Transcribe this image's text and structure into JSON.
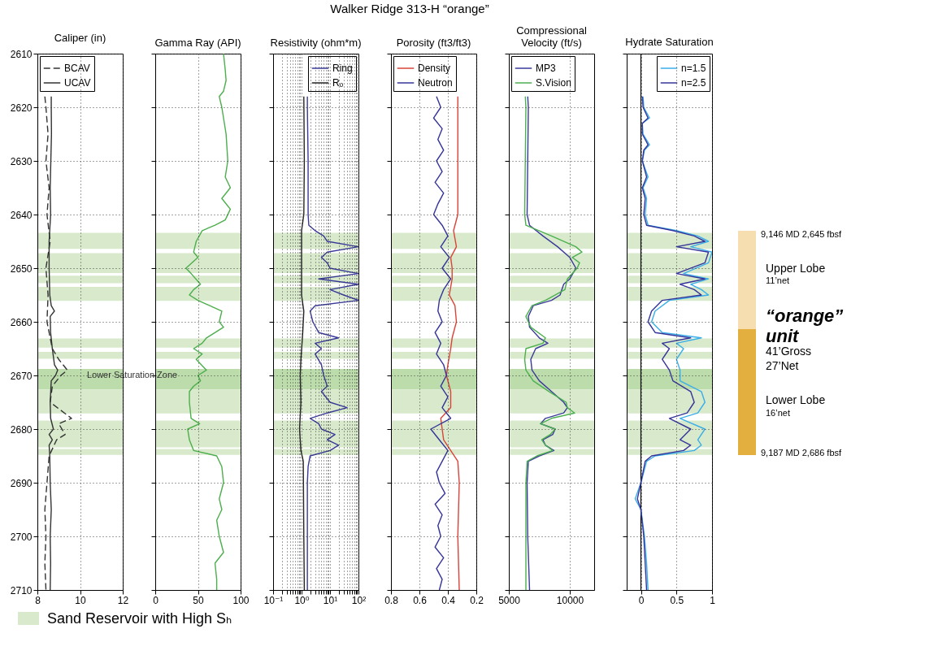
{
  "chart_data": [
    {
      "type": "line",
      "title": "Caliper (in)",
      "xlim": [
        8,
        12
      ],
      "xticks": [
        8,
        10,
        12
      ],
      "ylim": [
        2710,
        2610
      ],
      "yticks": [
        2610,
        2620,
        2630,
        2640,
        2650,
        2660,
        2670,
        2680,
        2690,
        2700,
        2710
      ],
      "grid": true,
      "legend": "top left",
      "series": [
        {
          "name": "BCAV",
          "color": "#333333",
          "line_style": "dashed",
          "x": [
            8.35,
            8.4,
            8.5,
            8.4,
            8.55,
            8.45,
            8.6,
            8.4,
            8.5,
            8.45,
            8.7,
            9.0,
            9.2,
            9.4,
            9.1,
            8.7,
            8.6,
            9.6,
            9.0,
            9.3,
            8.9,
            8.55,
            8.45,
            8.35,
            8.4,
            8.35,
            8.4
          ],
          "values": [
            2618,
            2620,
            2625,
            2630,
            2635,
            2640,
            2645,
            2650,
            2655,
            2660,
            2665,
            2667,
            2668,
            2669,
            2670,
            2672,
            2675,
            2678,
            2679,
            2681,
            2682,
            2685,
            2690,
            2695,
            2700,
            2705,
            2710
          ]
        },
        {
          "name": "UCAV",
          "color": "#333333",
          "line_style": "solid",
          "x": [
            8.65,
            8.65,
            8.66,
            8.63,
            8.6,
            8.62,
            8.55,
            8.55,
            8.58,
            8.65,
            8.8,
            8.6,
            8.62,
            8.7,
            8.8,
            8.95,
            8.85,
            8.65,
            8.6,
            8.62,
            8.75,
            8.55,
            8.7,
            8.55,
            8.58,
            8.6,
            8.65,
            8.6,
            8.62,
            8.6
          ],
          "values": [
            2618,
            2620,
            2625,
            2630,
            2635,
            2640,
            2645,
            2650,
            2655,
            2657,
            2658,
            2659,
            2662,
            2665,
            2668,
            2669,
            2670,
            2671,
            2675,
            2678,
            2680,
            2681,
            2682,
            2683,
            2685,
            2690,
            2695,
            2700,
            2705,
            2710
          ]
        }
      ],
      "annotations": [
        "Lower Saturation Zone"
      ],
      "bands": [
        {
          "axis": "y",
          "from": 2643.4,
          "to": 2646.4,
          "color": "#d8eacb"
        },
        {
          "axis": "y",
          "from": 2647.2,
          "to": 2650.9,
          "color": "#d8eacb"
        },
        {
          "axis": "y",
          "from": 2651.4,
          "to": 2652.8,
          "color": "#d8eacb"
        },
        {
          "axis": "y",
          "from": 2653.5,
          "to": 2656.1,
          "color": "#d8eacb"
        },
        {
          "axis": "y",
          "from": 2663.1,
          "to": 2664.8,
          "color": "#d8eacb"
        },
        {
          "axis": "y",
          "from": 2665.6,
          "to": 2666.9,
          "color": "#d8eacb"
        },
        {
          "axis": "y",
          "from": 2668.8,
          "to": 2672.6,
          "color": "#bcdcab"
        },
        {
          "axis": "y",
          "from": 2672.6,
          "to": 2677.1,
          "color": "#d8eacb"
        },
        {
          "axis": "y",
          "from": 2678.4,
          "to": 2683.4,
          "color": "#d8eacb"
        },
        {
          "axis": "y",
          "from": 2683.7,
          "to": 2684.8,
          "color": "#d8eacb"
        }
      ]
    },
    {
      "type": "line",
      "title": "Gamma Ray (API)",
      "xlim": [
        0,
        100
      ],
      "xticks": [
        0,
        50,
        100
      ],
      "ylim": [
        2710,
        2610
      ],
      "yticks": [
        2610,
        2620,
        2630,
        2640,
        2650,
        2660,
        2670,
        2680,
        2690,
        2700,
        2710
      ],
      "tick_labels": "x",
      "grid": true,
      "series": [
        {
          "color": "#4cae4c",
          "x": [
            80,
            82,
            83,
            80,
            75,
            78,
            83,
            85,
            82,
            88,
            78,
            88,
            82,
            70,
            55,
            48,
            45,
            50,
            36,
            42,
            53,
            45,
            40,
            50,
            78,
            75,
            80,
            60,
            55,
            45,
            55,
            48,
            60,
            50,
            53,
            45,
            40,
            40,
            42,
            52,
            38,
            40,
            45,
            72,
            78,
            80,
            75,
            78,
            72,
            75,
            80,
            70,
            72,
            72
          ],
          "values": [
            2610,
            2613,
            2615,
            2617,
            2618,
            2620,
            2625,
            2630,
            2633,
            2635,
            2637,
            2639,
            2641,
            2642,
            2643,
            2645,
            2647,
            2648,
            2650,
            2651,
            2653,
            2654,
            2655,
            2656,
            2658,
            2660,
            2661,
            2663,
            2664,
            2665,
            2666,
            2667,
            2669,
            2670,
            2671,
            2672,
            2673,
            2675,
            2678,
            2679,
            2680,
            2682,
            2684,
            2685,
            2687,
            2690,
            2693,
            2695,
            2697,
            2700,
            2703,
            2705,
            2708,
            2710
          ]
        }
      ],
      "bands": [
        {
          "axis": "y",
          "from": 2643.4,
          "to": 2646.4,
          "color": "#d8eacb"
        },
        {
          "axis": "y",
          "from": 2647.2,
          "to": 2650.9,
          "color": "#d8eacb"
        },
        {
          "axis": "y",
          "from": 2651.4,
          "to": 2652.8,
          "color": "#d8eacb"
        },
        {
          "axis": "y",
          "from": 2653.5,
          "to": 2656.1,
          "color": "#d8eacb"
        },
        {
          "axis": "y",
          "from": 2663.1,
          "to": 2664.8,
          "color": "#d8eacb"
        },
        {
          "axis": "y",
          "from": 2665.6,
          "to": 2666.9,
          "color": "#d8eacb"
        },
        {
          "axis": "y",
          "from": 2668.8,
          "to": 2672.6,
          "color": "#bcdcab"
        },
        {
          "axis": "y",
          "from": 2672.6,
          "to": 2677.1,
          "color": "#d8eacb"
        },
        {
          "axis": "y",
          "from": 2678.4,
          "to": 2683.4,
          "color": "#d8eacb"
        },
        {
          "axis": "y",
          "from": 2683.7,
          "to": 2684.8,
          "color": "#d8eacb"
        }
      ]
    },
    {
      "type": "line",
      "title": "Resistivity (ohm*m)",
      "log": "x",
      "xlim": [
        0.1,
        100
      ],
      "xticks": [
        {
          "value": 0.1,
          "label": "10⁻¹"
        },
        {
          "value": 0.2,
          "label": null
        },
        {
          "value": 0.3,
          "label": null
        },
        {
          "value": 0.4,
          "label": null
        },
        {
          "value": 0.5,
          "label": null
        },
        {
          "value": 0.6,
          "label": null
        },
        {
          "value": 0.7,
          "label": null
        },
        {
          "value": 0.8,
          "label": null
        },
        {
          "value": 0.9,
          "label": null
        },
        {
          "value": 1,
          "label": "10⁰"
        },
        {
          "value": 2,
          "label": null
        },
        {
          "value": 3,
          "label": null
        },
        {
          "value": 4,
          "label": null
        },
        {
          "value": 5,
          "label": null
        },
        {
          "value": 6,
          "label": null
        },
        {
          "value": 7,
          "label": null
        },
        {
          "value": 8,
          "label": null
        },
        {
          "value": 9,
          "label": null
        },
        {
          "value": 10,
          "label": "10¹"
        },
        {
          "value": 20,
          "label": null
        },
        {
          "value": 30,
          "label": null
        },
        {
          "value": 40,
          "label": null
        },
        {
          "value": 50,
          "label": null
        },
        {
          "value": 60,
          "label": null
        },
        {
          "value": 70,
          "label": null
        },
        {
          "value": 80,
          "label": null
        },
        {
          "value": 90,
          "label": null
        },
        {
          "value": 100,
          "label": "10²"
        }
      ],
      "ylim": [
        2710,
        2610
      ],
      "yticks": [
        2610,
        2620,
        2630,
        2640,
        2650,
        2660,
        2670,
        2680,
        2690,
        2700,
        2710
      ],
      "tick_labels": "x",
      "grid": true,
      "legend": "top right",
      "series": [
        {
          "name": "Ring",
          "color": "#3a3a9a",
          "x": [
            1.6,
            1.6,
            1.7,
            1.7,
            1.8,
            3,
            6,
            8,
            100,
            8,
            5,
            8,
            10,
            100,
            4,
            100,
            10,
            30,
            100,
            3,
            2,
            2.5,
            4,
            20,
            3,
            5,
            3,
            5,
            6,
            8,
            5,
            10,
            40,
            8,
            2,
            4,
            5,
            15,
            8,
            20,
            10,
            2,
            1.7,
            1.6,
            1.6,
            1.6
          ],
          "values": [
            2618,
            2620,
            2630,
            2640,
            2642,
            2643,
            2644,
            2645,
            2646,
            2647,
            2648,
            2649,
            2650,
            2651,
            2652,
            2653,
            2654,
            2655,
            2656,
            2657,
            2658,
            2660,
            2662,
            2663,
            2664,
            2665,
            2666,
            2668,
            2670,
            2672,
            2673,
            2675,
            2676,
            2677,
            2678,
            2679,
            2680,
            2681,
            2682,
            2683,
            2684,
            2685,
            2687,
            2690,
            2700,
            2710
          ]
        },
        {
          "name": "Rₒ",
          "color": "#222222",
          "x": [
            1.2,
            1.25,
            1.2,
            1.0,
            1.0,
            1.0,
            1.2,
            1.1,
            0.95,
            0.9,
            0.95,
            0.85,
            0.95,
            1.15,
            1.2,
            1.25
          ],
          "values": [
            2618,
            2630,
            2640,
            2643,
            2650,
            2655,
            2658,
            2662,
            2667,
            2670,
            2675,
            2680,
            2684,
            2686,
            2700,
            2710
          ]
        }
      ],
      "bands": [
        {
          "axis": "y",
          "from": 2643.4,
          "to": 2646.4,
          "color": "#d8eacb"
        },
        {
          "axis": "y",
          "from": 2647.2,
          "to": 2650.9,
          "color": "#d8eacb"
        },
        {
          "axis": "y",
          "from": 2651.4,
          "to": 2652.8,
          "color": "#d8eacb"
        },
        {
          "axis": "y",
          "from": 2653.5,
          "to": 2656.1,
          "color": "#d8eacb"
        },
        {
          "axis": "y",
          "from": 2663.1,
          "to": 2664.8,
          "color": "#d8eacb"
        },
        {
          "axis": "y",
          "from": 2665.6,
          "to": 2666.9,
          "color": "#d8eacb"
        },
        {
          "axis": "y",
          "from": 2668.8,
          "to": 2672.6,
          "color": "#bcdcab"
        },
        {
          "axis": "y",
          "from": 2672.6,
          "to": 2677.1,
          "color": "#d8eacb"
        },
        {
          "axis": "y",
          "from": 2678.4,
          "to": 2683.4,
          "color": "#d8eacb"
        },
        {
          "axis": "y",
          "from": 2683.7,
          "to": 2684.8,
          "color": "#d8eacb"
        }
      ]
    },
    {
      "type": "line",
      "title": "Porosity (ft3/ft3)",
      "xlim": [
        0.8,
        0.2
      ],
      "xticks": [
        0.8,
        0.6,
        0.4,
        0.2
      ],
      "ylim": [
        2710,
        2610
      ],
      "yticks": [
        2610,
        2620,
        2630,
        2640,
        2650,
        2660,
        2670,
        2680,
        2690,
        2700,
        2710
      ],
      "tick_labels": "x",
      "grid": true,
      "legend": "top left",
      "series": [
        {
          "name": "Density",
          "color": "#d9443a",
          "x": [
            0.33,
            0.33,
            0.33,
            0.33,
            0.36,
            0.34,
            0.38,
            0.37,
            0.37,
            0.39,
            0.35,
            0.34,
            0.37,
            0.38,
            0.4,
            0.41,
            0.38,
            0.38,
            0.45,
            0.44,
            0.43,
            0.38,
            0.33,
            0.32,
            0.33,
            0.32
          ],
          "values": [
            2618,
            2620,
            2630,
            2640,
            2643,
            2646,
            2648,
            2650,
            2652,
            2655,
            2657,
            2660,
            2663,
            2665,
            2668,
            2670,
            2673,
            2676,
            2678,
            2680,
            2682,
            2684,
            2686,
            2690,
            2700,
            2710
          ]
        },
        {
          "name": "Neutron",
          "color": "#35349a",
          "x": [
            0.48,
            0.45,
            0.5,
            0.44,
            0.47,
            0.43,
            0.48,
            0.44,
            0.49,
            0.43,
            0.47,
            0.5,
            0.44,
            0.4,
            0.45,
            0.39,
            0.44,
            0.38,
            0.43,
            0.46,
            0.47,
            0.44,
            0.49,
            0.45,
            0.48,
            0.43,
            0.41,
            0.45,
            0.4,
            0.44,
            0.38,
            0.52,
            0.46,
            0.4,
            0.44,
            0.48,
            0.46,
            0.42,
            0.49,
            0.44,
            0.47,
            0.45,
            0.49,
            0.43,
            0.48,
            0.44,
            0.46
          ],
          "values": [
            2618,
            2620,
            2622,
            2624,
            2626,
            2628,
            2630,
            2632,
            2634,
            2636,
            2638,
            2640,
            2642,
            2644,
            2646,
            2648,
            2650,
            2652,
            2654,
            2656,
            2658,
            2660,
            2662,
            2664,
            2666,
            2668,
            2670,
            2672,
            2674,
            2676,
            2678,
            2680,
            2682,
            2684,
            2686,
            2688,
            2690,
            2692,
            2694,
            2696,
            2698,
            2700,
            2702,
            2704,
            2706,
            2708,
            2710
          ]
        }
      ],
      "bands": [
        {
          "axis": "y",
          "from": 2643.4,
          "to": 2646.4,
          "color": "#d8eacb"
        },
        {
          "axis": "y",
          "from": 2647.2,
          "to": 2650.9,
          "color": "#d8eacb"
        },
        {
          "axis": "y",
          "from": 2651.4,
          "to": 2652.8,
          "color": "#d8eacb"
        },
        {
          "axis": "y",
          "from": 2653.5,
          "to": 2656.1,
          "color": "#d8eacb"
        },
        {
          "axis": "y",
          "from": 2663.1,
          "to": 2664.8,
          "color": "#d8eacb"
        },
        {
          "axis": "y",
          "from": 2665.6,
          "to": 2666.9,
          "color": "#d8eacb"
        },
        {
          "axis": "y",
          "from": 2668.8,
          "to": 2672.6,
          "color": "#bcdcab"
        },
        {
          "axis": "y",
          "from": 2672.6,
          "to": 2677.1,
          "color": "#d8eacb"
        },
        {
          "axis": "y",
          "from": 2678.4,
          "to": 2683.4,
          "color": "#d8eacb"
        },
        {
          "axis": "y",
          "from": 2683.7,
          "to": 2684.8,
          "color": "#d8eacb"
        }
      ]
    },
    {
      "type": "line",
      "title": "Compressional Velocity (ft/s)",
      "xlim": [
        5000,
        12000
      ],
      "xticks": [
        5000,
        10000
      ],
      "ylim": [
        2710,
        2610
      ],
      "yticks": [
        2610,
        2620,
        2630,
        2640,
        2650,
        2660,
        2670,
        2680,
        2690,
        2700,
        2710
      ],
      "tick_labels": "x",
      "grid": true,
      "legend": "top left",
      "series": [
        {
          "name": "MP3",
          "color": "#3a3a9a",
          "x": [
            6550,
            6600,
            6550,
            6500,
            6700,
            7800,
            9000,
            10000,
            10500,
            10000,
            9500,
            9200,
            8500,
            7000,
            6600,
            6700,
            7500,
            8200,
            7200,
            6800,
            6900,
            7500,
            8500,
            9500,
            9800,
            9500,
            8000,
            7600,
            8800,
            8600,
            7800,
            8000,
            8700,
            7500,
            6600,
            6500,
            6550,
            6700
          ],
          "values": [
            2618,
            2620,
            2630,
            2640,
            2642,
            2644,
            2646,
            2648,
            2650,
            2652,
            2653,
            2655,
            2656,
            2657,
            2659,
            2661,
            2663,
            2664,
            2665,
            2667,
            2669,
            2671,
            2673,
            2675,
            2676,
            2677,
            2678,
            2679,
            2680,
            2681,
            2682,
            2683,
            2684,
            2685,
            2686,
            2690,
            2700,
            2710
          ]
        },
        {
          "name": "S.Vision",
          "color": "#4caf50",
          "x": [
            6350,
            6400,
            6350,
            6300,
            6400,
            8500,
            10500,
            11000,
            10200,
            10800,
            10600,
            9800,
            9600,
            8000,
            6900,
            6400,
            6800,
            8000,
            7800,
            6400,
            6300,
            6400,
            7000,
            8300,
            9700,
            9800,
            10400,
            8500,
            7600,
            8800,
            8400,
            7700,
            8000,
            8600,
            7300,
            6500,
            6400,
            6400,
            6400
          ],
          "values": [
            2618,
            2620,
            2630,
            2640,
            2642,
            2644,
            2646,
            2647,
            2648,
            2649,
            2650,
            2652,
            2654,
            2656,
            2657,
            2659,
            2661,
            2663,
            2664,
            2665,
            2667,
            2669,
            2671,
            2673,
            2675,
            2676,
            2677,
            2678,
            2679,
            2680,
            2681,
            2682,
            2683,
            2684,
            2685,
            2686,
            2690,
            2700,
            2710
          ]
        }
      ],
      "bands": [
        {
          "axis": "y",
          "from": 2643.4,
          "to": 2646.4,
          "color": "#d8eacb"
        },
        {
          "axis": "y",
          "from": 2647.2,
          "to": 2650.9,
          "color": "#d8eacb"
        },
        {
          "axis": "y",
          "from": 2651.4,
          "to": 2652.8,
          "color": "#d8eacb"
        },
        {
          "axis": "y",
          "from": 2653.5,
          "to": 2656.1,
          "color": "#d8eacb"
        },
        {
          "axis": "y",
          "from": 2663.1,
          "to": 2664.8,
          "color": "#d8eacb"
        },
        {
          "axis": "y",
          "from": 2665.6,
          "to": 2666.9,
          "color": "#d8eacb"
        },
        {
          "axis": "y",
          "from": 2668.8,
          "to": 2672.6,
          "color": "#bcdcab"
        },
        {
          "axis": "y",
          "from": 2672.6,
          "to": 2677.1,
          "color": "#d8eacb"
        },
        {
          "axis": "y",
          "from": 2678.4,
          "to": 2683.4,
          "color": "#d8eacb"
        },
        {
          "axis": "y",
          "from": 2683.7,
          "to": 2684.8,
          "color": "#d8eacb"
        }
      ]
    },
    {
      "type": "line",
      "title": "Hydrate Saturation",
      "xlim": [
        -0.2,
        1
      ],
      "xticks": [
        0,
        0.5,
        1
      ],
      "ylim": [
        2710,
        2610
      ],
      "yticks": [
        2610,
        2620,
        2630,
        2640,
        2650,
        2660,
        2670,
        2680,
        2690,
        2700,
        2710
      ],
      "tick_labels": "x",
      "grid": true,
      "legend": "top right",
      "ref_lines": [
        {
          "axis": "x",
          "value": 0,
          "color": "#000000"
        }
      ],
      "series": [
        {
          "name": "n=1.5",
          "color": "#3aaee8",
          "x": [
            0.03,
            0.04,
            0.12,
            0.02,
            0.03,
            0.12,
            0.05,
            0.02,
            0.1,
            0.03,
            0.08,
            0.06,
            0.1,
            0.5,
            0.8,
            0.95,
            0.7,
            1.0,
            0.95,
            0.6,
            0.95,
            0.7,
            0.85,
            0.95,
            0.4,
            0.2,
            0.15,
            0.3,
            0.85,
            0.5,
            0.6,
            0.5,
            0.55,
            0.55,
            0.85,
            0.9,
            0.8,
            0.55,
            0.9,
            0.8,
            0.85,
            0.75,
            0.2,
            0.08,
            0.0,
            -0.08,
            0.0,
            0.05,
            0.08,
            0.1
          ],
          "values": [
            2618,
            2620,
            2622,
            2623,
            2625,
            2627,
            2628,
            2630,
            2633,
            2635,
            2637,
            2640,
            2642,
            2643,
            2644,
            2645,
            2646,
            2647,
            2649,
            2651,
            2652,
            2653,
            2654,
            2655,
            2656,
            2658,
            2660,
            2662,
            2663,
            2664,
            2665,
            2667,
            2669,
            2671,
            2673,
            2675,
            2677,
            2678,
            2680,
            2682,
            2683,
            2684,
            2685,
            2686,
            2690,
            2693,
            2695,
            2700,
            2705,
            2710
          ]
        },
        {
          "name": "n=2.5",
          "color": "#35349a",
          "x": [
            0.02,
            0.03,
            0.1,
            0.02,
            0.02,
            0.1,
            0.04,
            0.02,
            0.08,
            0.02,
            0.06,
            0.04,
            0.08,
            0.45,
            0.75,
            0.9,
            0.5,
            0.95,
            0.9,
            0.5,
            0.9,
            0.55,
            0.75,
            0.85,
            0.3,
            0.15,
            0.1,
            0.2,
            0.7,
            0.3,
            0.4,
            0.3,
            0.4,
            0.45,
            0.7,
            0.75,
            0.65,
            0.4,
            0.7,
            0.55,
            0.7,
            0.6,
            0.15,
            0.06,
            0.0,
            -0.05,
            0.0,
            0.04,
            0.06,
            0.08
          ],
          "values": [
            2618,
            2620,
            2622,
            2623,
            2625,
            2627,
            2628,
            2630,
            2633,
            2635,
            2637,
            2640,
            2642,
            2643,
            2644,
            2645,
            2646,
            2647,
            2649,
            2651,
            2652,
            2653,
            2654,
            2655,
            2656,
            2658,
            2660,
            2662,
            2663,
            2664,
            2665,
            2667,
            2669,
            2671,
            2673,
            2675,
            2677,
            2678,
            2680,
            2682,
            2683,
            2684,
            2685,
            2686,
            2690,
            2693,
            2695,
            2700,
            2705,
            2710
          ]
        }
      ],
      "bands": [
        {
          "axis": "y",
          "from": 2643.4,
          "to": 2646.4,
          "color": "#d8eacb"
        },
        {
          "axis": "y",
          "from": 2647.2,
          "to": 2650.9,
          "color": "#d8eacb"
        },
        {
          "axis": "y",
          "from": 2651.4,
          "to": 2652.8,
          "color": "#d8eacb"
        },
        {
          "axis": "y",
          "from": 2653.5,
          "to": 2656.1,
          "color": "#d8eacb"
        },
        {
          "axis": "y",
          "from": 2663.1,
          "to": 2664.8,
          "color": "#d8eacb"
        },
        {
          "axis": "y",
          "from": 2665.6,
          "to": 2666.9,
          "color": "#d8eacb"
        },
        {
          "axis": "y",
          "from": 2668.8,
          "to": 2672.6,
          "color": "#bcdcab"
        },
        {
          "axis": "y",
          "from": 2672.6,
          "to": 2677.1,
          "color": "#d8eacb"
        },
        {
          "axis": "y",
          "from": 2678.4,
          "to": 2683.4,
          "color": "#d8eacb"
        },
        {
          "axis": "y",
          "from": 2683.7,
          "to": 2684.8,
          "color": "#d8eacb"
        }
      ]
    },
    {
      "type": "other",
      "title": "Walker Ridge 313-H “orange”",
      "annotations": [
        "9,146 MD 2,645 fbsf",
        "Upper Lobe",
        "11’net",
        "“orange” unit",
        "41’Gross",
        "27’Net",
        "Lower Lobe",
        "16’net",
        "9,187 MD  2,686 fbsf",
        "Sand Reservoir with High Sₕ"
      ]
    }
  ]
}
